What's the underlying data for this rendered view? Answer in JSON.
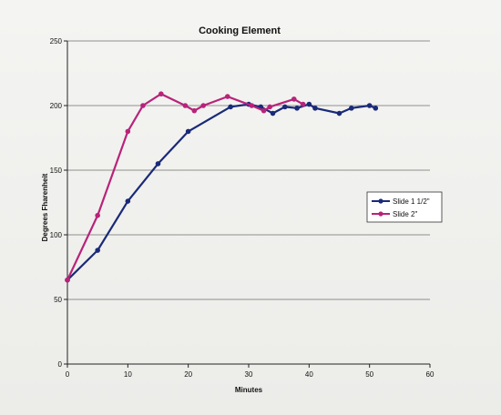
{
  "chart_data": {
    "type": "line",
    "title": "Cooking Element",
    "xlabel": "Minutes",
    "ylabel": "Degrees Fharenheit",
    "xlim": [
      0,
      60
    ],
    "ylim": [
      0,
      250
    ],
    "xticks": [
      0,
      10,
      20,
      30,
      40,
      50,
      60
    ],
    "yticks": [
      0,
      50,
      100,
      150,
      200,
      250
    ],
    "grid": "horizontal",
    "legend_position": "right",
    "series": [
      {
        "name": "Slide 1 1/2\"",
        "color": "#1a2a78",
        "x": [
          0,
          5,
          10,
          15,
          20,
          27,
          30,
          32,
          34,
          36,
          38,
          40,
          41,
          45,
          47,
          50,
          51
        ],
        "y": [
          65,
          88,
          126,
          155,
          180,
          199,
          201,
          199,
          194,
          199,
          198,
          201,
          198,
          194,
          198,
          200,
          198
        ]
      },
      {
        "name": "Slide 2\"",
        "color": "#b8237a",
        "x": [
          0,
          5,
          10,
          12.5,
          15.5,
          19.5,
          21,
          22.5,
          26.5,
          30.5,
          32.5,
          33.5,
          37.5,
          39
        ],
        "y": [
          65,
          115,
          180,
          200,
          209,
          200,
          196,
          200,
          207,
          200,
          196,
          199,
          205,
          201
        ]
      }
    ]
  }
}
